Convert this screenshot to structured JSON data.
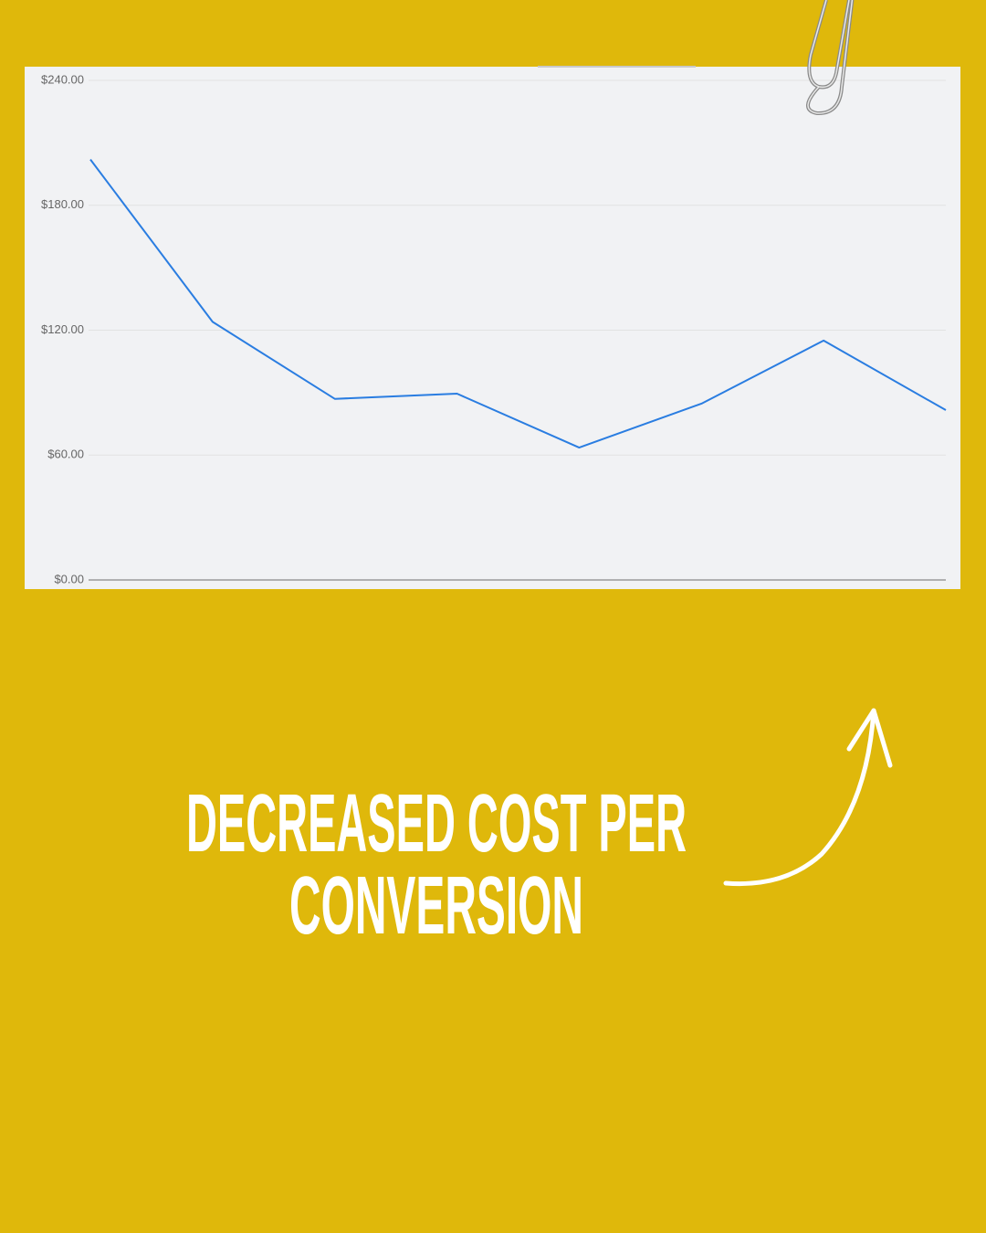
{
  "chart_data": {
    "type": "line",
    "series": [
      {
        "color": "#2a7de1",
        "values": [
          202,
          124,
          87,
          89.5,
          63.6,
          84.7,
          115,
          81.6
        ]
      }
    ],
    "ylim": [
      0,
      240
    ],
    "yticks": [
      {
        "value": 0,
        "label": "$0.00"
      },
      {
        "value": 60,
        "label": "$60.00"
      },
      {
        "value": 120,
        "label": "$120.00"
      },
      {
        "value": 180,
        "label": "$180.00"
      },
      {
        "value": 240,
        "label": "$240.00"
      }
    ],
    "grid": true
  },
  "headline": [
    "DECREASED COST PER",
    "CONVERSION"
  ]
}
